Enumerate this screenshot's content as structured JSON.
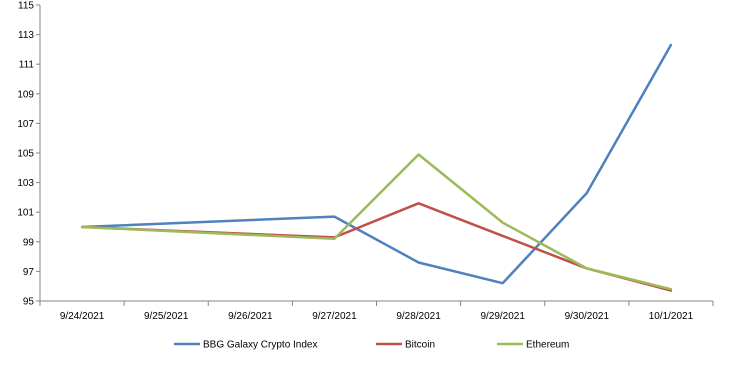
{
  "chart_data": {
    "type": "line",
    "title": "",
    "xlabel": "",
    "ylabel": "",
    "categories": [
      "9/24/2021",
      "9/25/2021",
      "9/26/2021",
      "9/27/2021",
      "9/28/2021",
      "9/29/2021",
      "9/30/2021",
      "10/1/2021"
    ],
    "ylim": [
      95,
      115
    ],
    "yticks": [
      "95",
      "97",
      "99",
      "101",
      "103",
      "105",
      "107",
      "109",
      "111",
      "113",
      "115"
    ],
    "grid": false,
    "legend_position": "bottom",
    "series": [
      {
        "name": "BBG Galaxy Crypto Index",
        "color": "#4f81bd",
        "values": [
          100.0,
          null,
          null,
          100.7,
          97.6,
          96.2,
          102.3,
          112.3
        ]
      },
      {
        "name": "Bitcoin",
        "color": "#c0504d",
        "values": [
          100.0,
          null,
          null,
          99.3,
          101.6,
          99.4,
          97.2,
          95.7
        ]
      },
      {
        "name": "Ethereum",
        "color": "#9bbb59",
        "values": [
          100.0,
          null,
          null,
          99.2,
          104.9,
          100.3,
          97.2,
          95.8
        ]
      }
    ]
  }
}
